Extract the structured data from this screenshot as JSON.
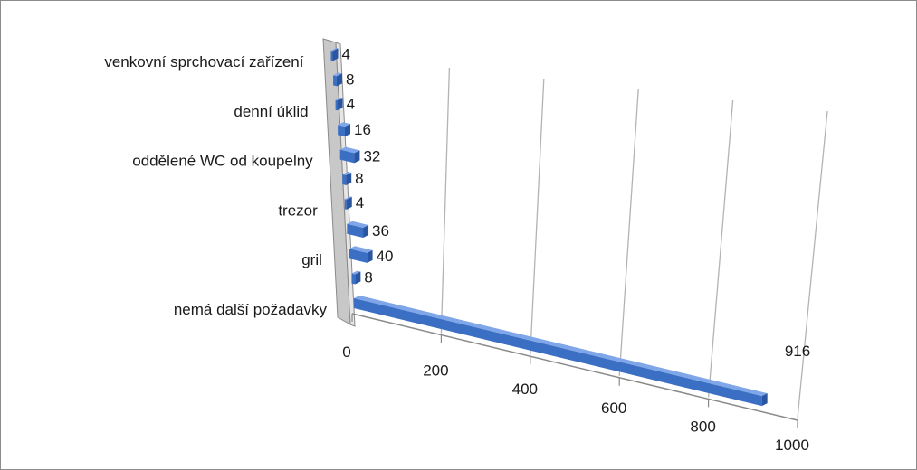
{
  "chart_data": {
    "type": "bar",
    "orientation": "horizontal",
    "style": "3d-perspective",
    "title": "",
    "xlabel": "",
    "ylabel": "",
    "categories": [
      "nemá další požadavky",
      "",
      "gril",
      "",
      "trezor",
      "",
      "oddělené WC od koupelny",
      "",
      "denní úklid",
      "",
      "venkovní sprchovací zařízení"
    ],
    "values": [
      916,
      8,
      40,
      36,
      4,
      8,
      32,
      16,
      4,
      8,
      4
    ],
    "value_labels": [
      "916",
      "8",
      "40",
      "36",
      "4",
      "8",
      "32",
      "16",
      "4",
      "8",
      "4"
    ],
    "xlim": [
      0,
      1000
    ],
    "xticks": [
      0,
      200,
      400,
      600,
      800,
      1000
    ],
    "xtick_labels": [
      "0",
      "200",
      "400",
      "600",
      "800",
      "1000"
    ],
    "grid": true,
    "legend": "none",
    "bar_color": "#3a6fc4"
  }
}
